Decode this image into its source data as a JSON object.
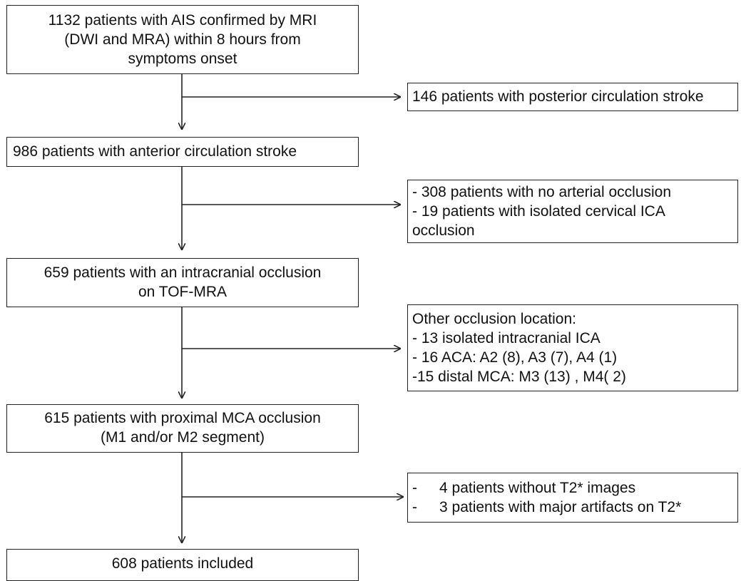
{
  "flowchart": {
    "main_steps": [
      {
        "id": "step1",
        "lines": [
          "1132 patients with AIS confirmed by MRI",
          "(DWI and MRA) within 8 hours from",
          "symptoms onset"
        ]
      },
      {
        "id": "step2",
        "lines": [
          "986 patients with anterior circulation stroke"
        ]
      },
      {
        "id": "step3",
        "lines": [
          "659 patients with an intracranial occlusion",
          "on TOF-MRA"
        ]
      },
      {
        "id": "step4",
        "lines": [
          "615 patients with proximal MCA occlusion",
          "(M1 and/or M2 segment)"
        ]
      },
      {
        "id": "step5",
        "lines": [
          "608 patients included"
        ]
      }
    ],
    "exclusions": [
      {
        "id": "excl1",
        "lines": [
          "146 patients with  posterior circulation stroke"
        ]
      },
      {
        "id": "excl2",
        "lines": [
          "- 308 patients with no arterial occlusion",
          "- 19 patients with isolated cervical ICA",
          "occlusion"
        ]
      },
      {
        "id": "excl3",
        "lines": [
          "Other occlusion location:",
          "- 13 isolated intracranial  ICA",
          "- 16 ACA: A2 (8), A3 (7), A4 (1)",
          "-15 distal MCA: M3 (13) , M4( 2)"
        ]
      },
      {
        "id": "excl4",
        "items": [
          {
            "bullet": "-",
            "text": "4 patients without T2* images"
          },
          {
            "bullet": "-",
            "text": "3 patients with major artifacts on T2*"
          }
        ]
      }
    ]
  }
}
